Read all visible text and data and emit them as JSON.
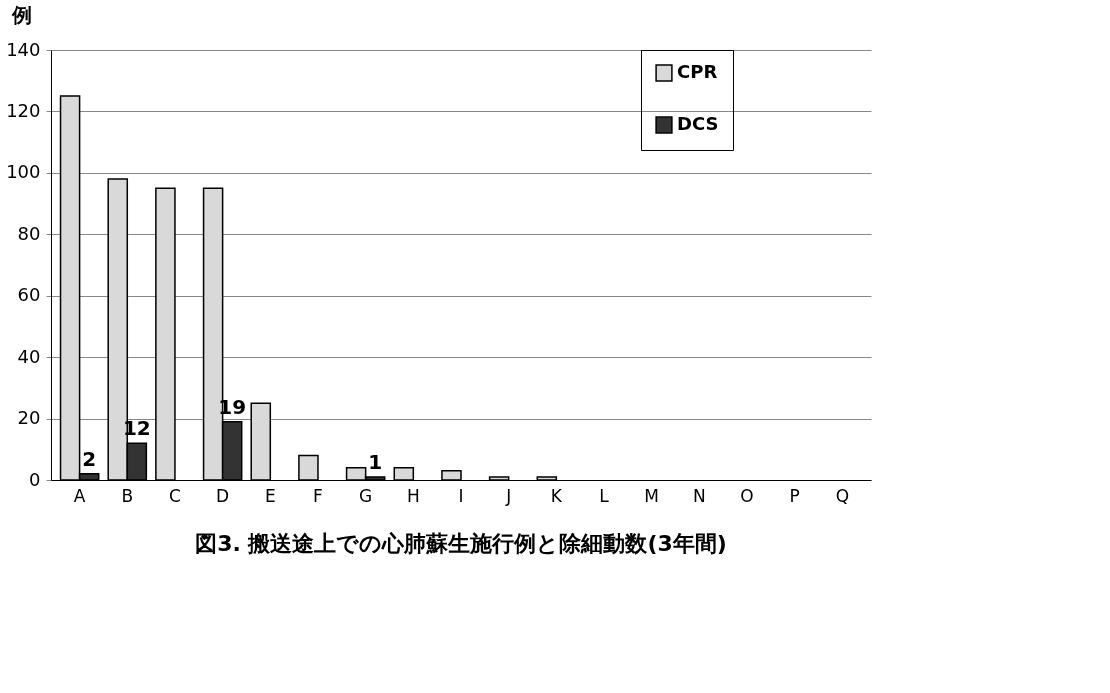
{
  "chart_data": {
    "type": "bar",
    "title": "図3. 搬送途上での心肺蘇生施行例と除細動数(3年間)",
    "ylabel": "例",
    "categories": [
      "A",
      "B",
      "C",
      "D",
      "E",
      "F",
      "G",
      "H",
      "I",
      "J",
      "K",
      "L",
      "M",
      "N",
      "O",
      "P",
      "Q"
    ],
    "series": [
      {
        "name": "CPR",
        "color": "#d9d9d9",
        "values": [
          125,
          98,
          95,
          95,
          25,
          8,
          4,
          4,
          3,
          1,
          1,
          0,
          0,
          0,
          0,
          0,
          0
        ]
      },
      {
        "name": "DCS",
        "color": "#333333",
        "values": [
          2,
          12,
          0,
          19,
          0,
          0,
          1,
          0,
          0,
          0,
          0,
          0,
          0,
          0,
          0,
          0,
          0
        ],
        "value_labels": [
          "2",
          "12",
          null,
          "19",
          null,
          null,
          "1",
          null,
          null,
          null,
          null,
          null,
          null,
          null,
          null,
          null,
          null
        ]
      }
    ],
    "ylim": [
      0,
      140
    ],
    "yticks": [
      0,
      20,
      40,
      60,
      80,
      100,
      120,
      140
    ],
    "grid": "y",
    "legend": "right"
  }
}
